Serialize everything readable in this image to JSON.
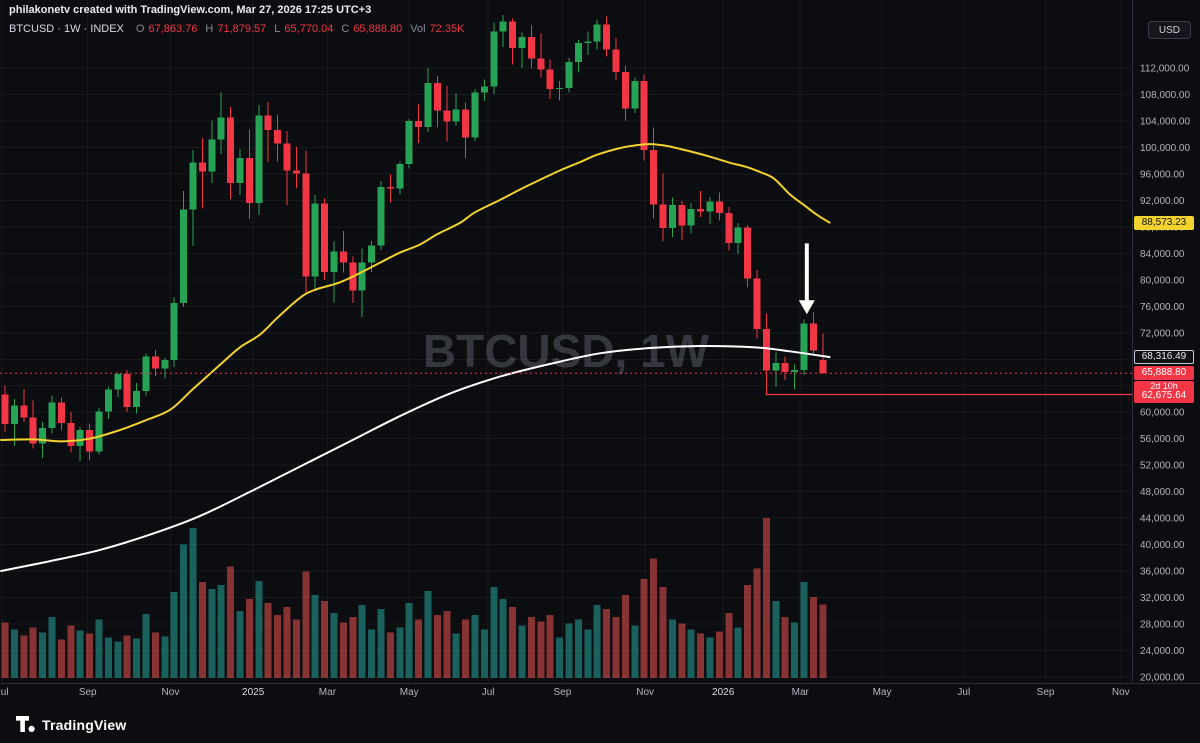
{
  "header": {
    "attribution": "philakonetv created with TradingView.com, Mar 27, 2026 17:25 UTC+3",
    "legend": {
      "symbol": "BTCUSD · 1W · INDEX",
      "open_label": "O",
      "open": "67,863.76",
      "high_label": "H",
      "high": "71,879.57",
      "low_label": "L",
      "low": "65,770.04",
      "close_label": "C",
      "close": "65,888.80",
      "vol_label": "Vol",
      "volume": "72.35K"
    }
  },
  "price_axis": {
    "currency_button": "USD",
    "labels": {
      "ma_yellow": "88,573.23",
      "ma_white": "68,316.49",
      "last_price": "65,888.80",
      "countdown": "2d 10h",
      "level": "62,675.64"
    }
  },
  "watermark": "BTCUSD, 1W",
  "footer": {
    "logo_text": "TradingView"
  },
  "colors": {
    "background": "#0c0d10",
    "up": "#26a355",
    "down": "#f23645",
    "volume_up": "rgba(38,166,154,0.55)",
    "volume_down": "rgba(239,83,80,0.55)",
    "ma_yellow": "#f2d22e",
    "ma_white": "#ffffff",
    "axis_text": "#b2b5be",
    "arrow": "#ffffff"
  },
  "chart_data": {
    "type": "candlestick",
    "symbol": "BTCUSD",
    "timeframe": "1W",
    "exchange": "INDEX",
    "y_axis": {
      "min": 20000,
      "max": 112000,
      "step": 4000,
      "format": "#,##0.00"
    },
    "x_axis": {
      "ticks": [
        {
          "label": "Jul",
          "week": -0.3
        },
        {
          "label": "Sep",
          "week": 8.8
        },
        {
          "label": "Nov",
          "week": 17.6
        },
        {
          "label": "2025",
          "week": 26.4,
          "major": true
        },
        {
          "label": "Mar",
          "week": 34.3
        },
        {
          "label": "May",
          "week": 43
        },
        {
          "label": "Jul",
          "week": 51.4
        },
        {
          "label": "Sep",
          "week": 59.3
        },
        {
          "label": "Nov",
          "week": 68.1
        },
        {
          "label": "2026",
          "week": 76.4,
          "major": true
        },
        {
          "label": "Mar",
          "week": 84.6
        },
        {
          "label": "May",
          "week": 93.3
        },
        {
          "label": "Jul",
          "week": 102
        },
        {
          "label": "Sep",
          "week": 110.7
        },
        {
          "label": "Nov",
          "week": 118.7
        }
      ]
    },
    "candles": [
      [
        62700,
        64000,
        57100,
        58200
      ],
      [
        58200,
        62000,
        55000,
        61000
      ],
      [
        61000,
        63500,
        58500,
        59200
      ],
      [
        59200,
        61800,
        54500,
        55300
      ],
      [
        55300,
        58500,
        53100,
        57600
      ],
      [
        57600,
        62500,
        56800,
        61500
      ],
      [
        61500,
        62200,
        57300,
        58400
      ],
      [
        58400,
        60000,
        53900,
        54900
      ],
      [
        54900,
        57800,
        52600,
        57300
      ],
      [
        57300,
        58300,
        52800,
        54100
      ],
      [
        54100,
        60600,
        53600,
        60100
      ],
      [
        60100,
        63800,
        59000,
        63400
      ],
      [
        63400,
        66000,
        62300,
        65800
      ],
      [
        65800,
        66400,
        60000,
        60800
      ],
      [
        60800,
        64400,
        59800,
        63200
      ],
      [
        63200,
        68900,
        62500,
        68400
      ],
      [
        68400,
        69400,
        65500,
        66600
      ],
      [
        66600,
        68200,
        65100,
        67900
      ],
      [
        67900,
        77300,
        66800,
        76500
      ],
      [
        76500,
        93400,
        75900,
        90600
      ],
      [
        90600,
        99600,
        85100,
        97700
      ],
      [
        97700,
        101400,
        90800,
        96400
      ],
      [
        96400,
        104100,
        94600,
        101200
      ],
      [
        101200,
        108300,
        99000,
        104500
      ],
      [
        104500,
        106100,
        92200,
        94600
      ],
      [
        94600,
        99800,
        92800,
        98400
      ],
      [
        98400,
        102700,
        89200,
        91600
      ],
      [
        91600,
        106400,
        89800,
        104800
      ],
      [
        104800,
        106900,
        97800,
        102600
      ],
      [
        102600,
        105000,
        97900,
        100600
      ],
      [
        100600,
        102500,
        91300,
        96500
      ],
      [
        96500,
        100100,
        93900,
        96100
      ],
      [
        96100,
        99500,
        78100,
        80500
      ],
      [
        80500,
        92800,
        78300,
        91500
      ],
      [
        91500,
        92300,
        80000,
        81200
      ],
      [
        81200,
        85800,
        76600,
        84300
      ],
      [
        84300,
        87400,
        81100,
        82600
      ],
      [
        82600,
        83500,
        76500,
        78400
      ],
      [
        78400,
        84700,
        74400,
        82600
      ],
      [
        82600,
        85900,
        81200,
        85200
      ],
      [
        85200,
        94900,
        84500,
        94000
      ],
      [
        94000,
        95900,
        91700,
        93800
      ],
      [
        93800,
        97900,
        92900,
        97500
      ],
      [
        97500,
        104300,
        96800,
        104000
      ],
      [
        104000,
        106500,
        100700,
        103100
      ],
      [
        103100,
        112000,
        102300,
        109700
      ],
      [
        109700,
        110800,
        103100,
        105600
      ],
      [
        105600,
        109300,
        100900,
        103900
      ],
      [
        103900,
        108200,
        103300,
        105700
      ],
      [
        105700,
        106800,
        98400,
        101500
      ],
      [
        101500,
        108800,
        101000,
        108300
      ],
      [
        108300,
        110300,
        107000,
        109200
      ],
      [
        109200,
        118900,
        108100,
        117500
      ],
      [
        117500,
        120000,
        115200,
        119000
      ],
      [
        119000,
        119500,
        112500,
        115000
      ],
      [
        115000,
        117400,
        112000,
        116700
      ],
      [
        116700,
        118400,
        111900,
        113400
      ],
      [
        113400,
        117200,
        110600,
        111800
      ],
      [
        111800,
        113300,
        107300,
        108800
      ],
      [
        108800,
        110000,
        107100,
        109000
      ],
      [
        109000,
        113500,
        108300,
        112900
      ],
      [
        112900,
        116200,
        111300,
        115800
      ],
      [
        115800,
        117500,
        114000,
        116000
      ],
      [
        116000,
        119300,
        114800,
        118600
      ],
      [
        118600,
        119800,
        113700,
        114800
      ],
      [
        114800,
        116500,
        110200,
        111400
      ],
      [
        111400,
        112300,
        104000,
        105900
      ],
      [
        105900,
        110600,
        105200,
        110000
      ],
      [
        110000,
        111000,
        98000,
        99600
      ],
      [
        99600,
        103000,
        89300,
        91400
      ],
      [
        91400,
        96100,
        85800,
        87800
      ],
      [
        87800,
        92400,
        86500,
        91300
      ],
      [
        91300,
        91900,
        86000,
        88200
      ],
      [
        88200,
        91600,
        87000,
        90700
      ],
      [
        90700,
        93400,
        89500,
        90300
      ],
      [
        90300,
        92500,
        88400,
        91800
      ],
      [
        91800,
        93200,
        89000,
        90100
      ],
      [
        90100,
        91000,
        84400,
        85600
      ],
      [
        85600,
        88600,
        83900,
        87900
      ],
      [
        87900,
        88300,
        78900,
        80200
      ],
      [
        80200,
        81500,
        71100,
        72600
      ],
      [
        72600,
        74900,
        62700,
        66300
      ],
      [
        66300,
        69000,
        63800,
        67400
      ],
      [
        67400,
        68400,
        64900,
        66100
      ],
      [
        66100,
        67200,
        63400,
        66400
      ],
      [
        66400,
        74000,
        65600,
        73400
      ],
      [
        73400,
        75100,
        68900,
        69300
      ],
      [
        67863.76,
        71879.57,
        65770.04,
        65888.8
      ]
    ],
    "volumes": [
      55,
      48,
      42,
      50,
      45,
      60,
      38,
      52,
      47,
      44,
      58,
      40,
      36,
      42,
      39,
      63,
      45,
      41,
      85,
      132,
      148,
      95,
      88,
      92,
      110,
      66,
      78,
      96,
      74,
      62,
      70,
      58,
      105,
      82,
      76,
      64,
      55,
      60,
      72,
      48,
      68,
      45,
      50,
      74,
      58,
      86,
      62,
      66,
      44,
      58,
      62,
      48,
      90,
      78,
      70,
      52,
      60,
      56,
      62,
      40,
      54,
      58,
      48,
      72,
      68,
      60,
      82,
      52,
      98,
      118,
      90,
      58,
      54,
      48,
      44,
      40,
      46,
      64,
      50,
      92,
      108,
      158,
      76,
      60,
      55,
      95,
      80,
      72.35
    ],
    "ma_yellow": [
      [
        -0.5,
        55800
      ],
      [
        3,
        55900
      ],
      [
        6,
        55600
      ],
      [
        9,
        56000
      ],
      [
        12,
        57200
      ],
      [
        15,
        58800
      ],
      [
        17.6,
        60400
      ],
      [
        20,
        63500
      ],
      [
        22.9,
        67200
      ],
      [
        25,
        69800
      ],
      [
        27.1,
        71700
      ],
      [
        29,
        74300
      ],
      [
        31.4,
        77300
      ],
      [
        33,
        78500
      ],
      [
        35.6,
        79600
      ],
      [
        38,
        81200
      ],
      [
        39.9,
        82600
      ],
      [
        42,
        84100
      ],
      [
        44.1,
        85300
      ],
      [
        46,
        86900
      ],
      [
        48.4,
        88600
      ],
      [
        50,
        90200
      ],
      [
        52.7,
        92100
      ],
      [
        55,
        93800
      ],
      [
        56.9,
        95100
      ],
      [
        59,
        96500
      ],
      [
        61.2,
        97800
      ],
      [
        63,
        98900
      ],
      [
        65.4,
        99900
      ],
      [
        67,
        100300
      ],
      [
        68.6,
        100500
      ],
      [
        70.5,
        100200
      ],
      [
        72.9,
        99400
      ],
      [
        75,
        98600
      ],
      [
        77.1,
        97700
      ],
      [
        79,
        97000
      ],
      [
        80.3,
        96300
      ],
      [
        81.8,
        95300
      ],
      [
        83.5,
        92900
      ],
      [
        85,
        91300
      ],
      [
        86.3,
        89900
      ],
      [
        87.8,
        88573.23
      ]
    ],
    "ma_white": [
      [
        -0.5,
        36000
      ],
      [
        4.8,
        37500
      ],
      [
        10.1,
        39200
      ],
      [
        15.4,
        41500
      ],
      [
        20.7,
        44300
      ],
      [
        26.1,
        48000
      ],
      [
        31.4,
        51800
      ],
      [
        36.7,
        55600
      ],
      [
        42,
        59400
      ],
      [
        47.3,
        62800
      ],
      [
        52.7,
        65400
      ],
      [
        58,
        67300
      ],
      [
        63.3,
        68900
      ],
      [
        68.6,
        69700
      ],
      [
        73.9,
        70000
      ],
      [
        79.8,
        69800
      ],
      [
        83.5,
        69200
      ],
      [
        87.8,
        68316.49
      ]
    ],
    "last_price_line": {
      "price": 65888.8,
      "style": "dotted"
    },
    "horizontal_ray": {
      "price": 62675.64,
      "from_week": 80.9
    },
    "arrow": {
      "week": 85.3,
      "from_price": 85500,
      "to_price": 74800,
      "direction": "down"
    }
  }
}
